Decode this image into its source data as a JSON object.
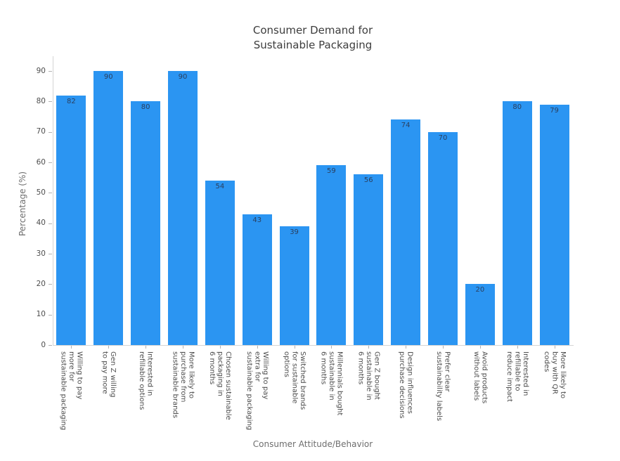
{
  "chart_data": {
    "type": "bar",
    "title": "Consumer Demand for\nSustainable Packaging",
    "xlabel": "Consumer Attitude/Behavior",
    "ylabel": "Percentage (%)",
    "ylim": [
      0,
      95
    ],
    "yticks": [
      0,
      10,
      20,
      30,
      40,
      50,
      60,
      70,
      80,
      90
    ],
    "grid": false,
    "legend": false,
    "bar_color": "#2b95f2",
    "value_label_color": "#2a3f5f",
    "categories": [
      "Willing to pay\nmore for\nsustainable packaging",
      "Gen Z willing\nto pay more",
      "Interested in\nrefillable options",
      "More likely to\npurchase from\nsustainable brands",
      "Chosen sustainable\npackaging in\n6 months",
      "Willing to pay\nextra for\nsustainable packaging",
      "Switched brands\nfor sustainable\noptions",
      "Millennials bought\nsustainable in\n6 months",
      "Gen Z bought\nsustainable in\n6 months",
      "Design influences\npurchase decisions",
      "Prefer clear\nsustainability labels",
      "Avoid products\nwithout labels",
      "Interested in\nrefillable to\nreduce impact",
      "More likely to\nbuy with QR\ncodes"
    ],
    "values": [
      82,
      90,
      80,
      90,
      54,
      43,
      39,
      59,
      56,
      74,
      70,
      20,
      80,
      79
    ]
  }
}
